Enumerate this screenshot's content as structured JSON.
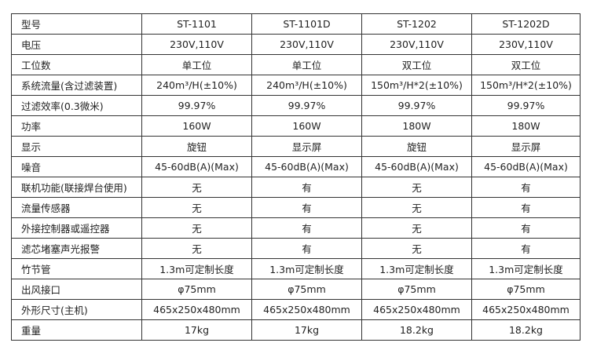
{
  "columns": [
    "型号",
    "ST-1101",
    "ST-1101D",
    "ST-1202",
    "ST-1202D"
  ],
  "rows": [
    [
      "电压",
      "230V,110V",
      "230V,110V",
      "230V,110V",
      "230V,110V"
    ],
    [
      "工位数",
      "单工位",
      "单工位",
      "双工位",
      "双工位"
    ],
    [
      "系统流量(含过滤装置)",
      "240m³/H(±10%)",
      "240m³/H(±10%)",
      "150m³/H*2(±10%)",
      "150m³/H*2(±10%)"
    ],
    [
      "过滤效率(0.3微米)",
      "99.97%",
      "99.97%",
      "99.97%",
      "99.97%"
    ],
    [
      "功率",
      "160W",
      "160W",
      "180W",
      "180W"
    ],
    [
      "显示",
      "旋钮",
      "显示屏",
      "旋钮",
      "显示屏"
    ],
    [
      "噪音",
      "45-60dB(A)(Max)",
      "45-60dB(A)(Max)",
      "45-60dB(A)(Max)",
      "45-60dB(A)(Max)"
    ],
    [
      "联机功能(联接焊台使用)",
      "无",
      "有",
      "无",
      "有"
    ],
    [
      "流量传感器",
      "无",
      "有",
      "无",
      "有"
    ],
    [
      "外接控制器或遥控器",
      "无",
      "有",
      "无",
      "有"
    ],
    [
      "滤芯堵塞声光报警",
      "无",
      "有",
      "无",
      "有"
    ],
    [
      "竹节管",
      "1.3m可定制长度",
      "1.3m可定制长度",
      "1.3m可定制长度",
      "1.3m可定制长度"
    ],
    [
      "出风接口",
      "φ75mm",
      "φ75mm",
      "φ75mm",
      "φ75mm"
    ],
    [
      "外形尺寸(主机)",
      "465x250x480mm",
      "465x250x480mm",
      "465x250x480mm",
      "465x250x480mm"
    ],
    [
      "重量",
      "17kg",
      "17kg",
      "18.2kg",
      "18.2kg"
    ]
  ]
}
